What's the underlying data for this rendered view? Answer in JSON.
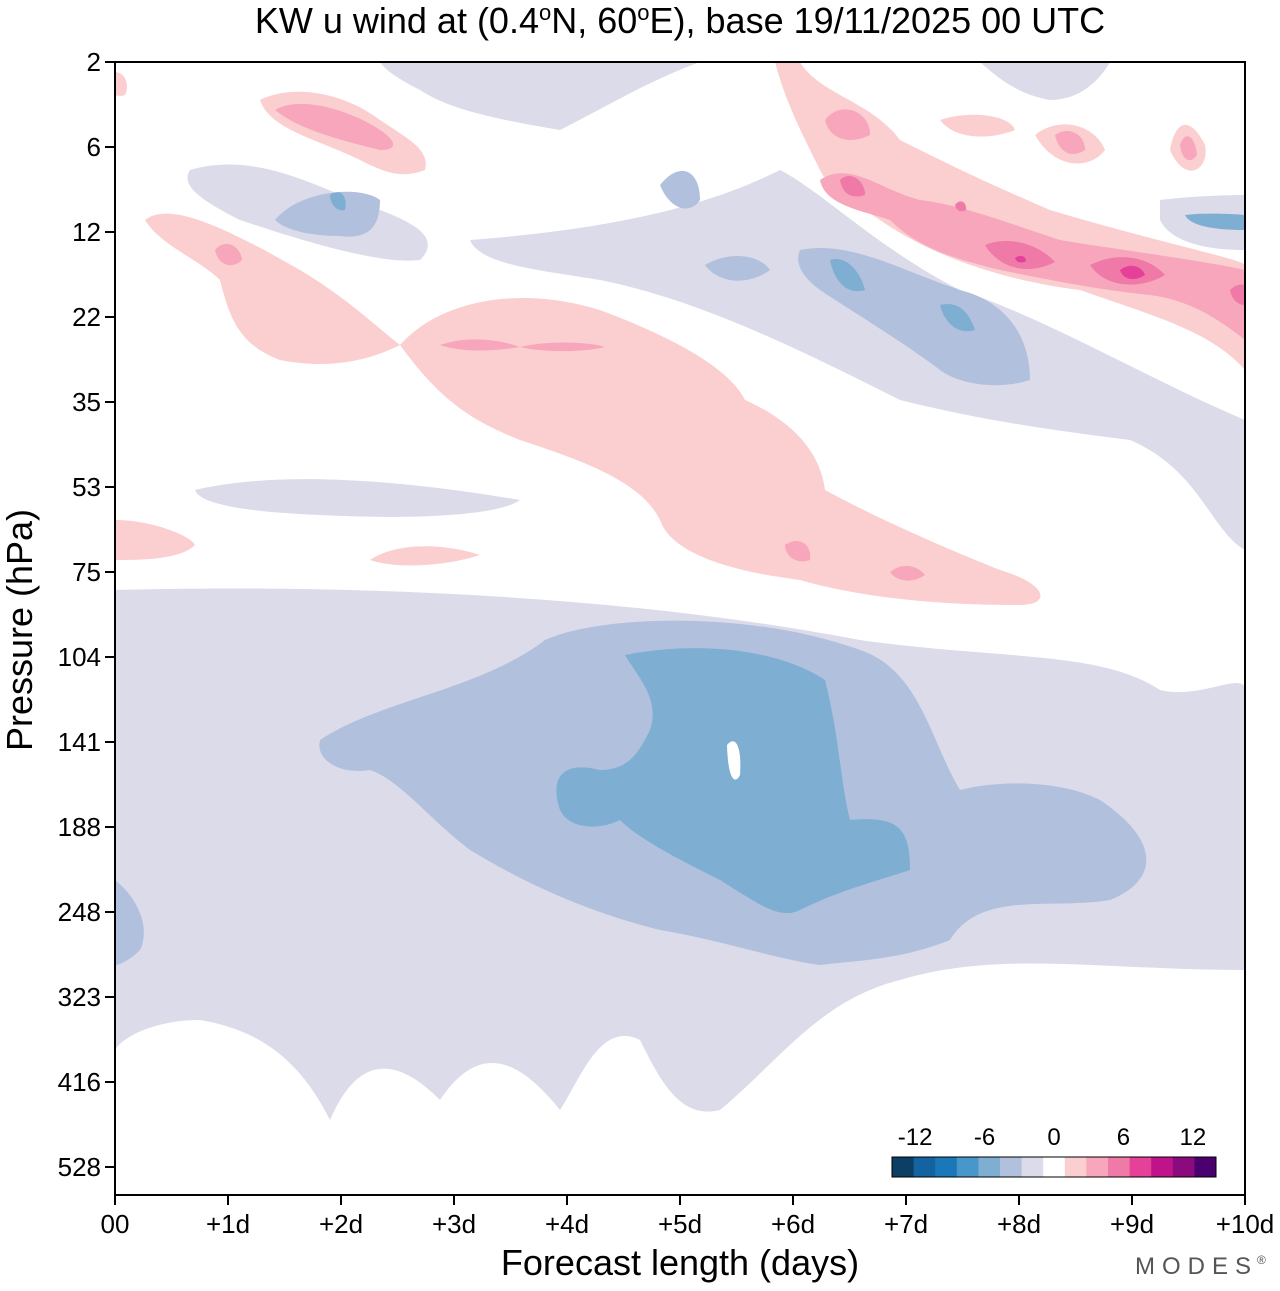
{
  "chart_data": {
    "type": "heatmap",
    "title": "KW u wind at (0.4°N, 60°E),  base 19/11/2025  00 UTC",
    "title_parts": {
      "prefix": "KW u wind at (0.4",
      "lat_unit": "N, 60",
      "lon_unit": "E),  base 19/11/2025  00 UTC",
      "degree": "o"
    },
    "xlabel": "Forecast length (days)",
    "ylabel": "Pressure (hPa)",
    "x_ticks": [
      "00",
      "+1d",
      "+2d",
      "+3d",
      "+4d",
      "+5d",
      "+6d",
      "+7d",
      "+8d",
      "+9d",
      "+10d"
    ],
    "x_range_days": [
      0,
      10
    ],
    "y_ticks": [
      "2",
      "6",
      "12",
      "22",
      "35",
      "53",
      "75",
      "104",
      "141",
      "188",
      "248",
      "323",
      "416",
      "528"
    ],
    "y_scale": "log-pressure",
    "colorbar": {
      "tick_labels": [
        "-12",
        "-6",
        "0",
        "6",
        "12"
      ],
      "levels_ms": [
        -14,
        -12,
        -10,
        -8,
        -6,
        -4,
        -2,
        0,
        2,
        4,
        6,
        8,
        10,
        12,
        14
      ],
      "colors": [
        "#0b3f64",
        "#1463a0",
        "#1b78b8",
        "#4897ca",
        "#7faed3",
        "#b1c0dd",
        "#dcdbea",
        "#ffffff",
        "#fbcfd0",
        "#f7a6bb",
        "#f07aa7",
        "#e64199",
        "#c0138b",
        "#8b0a7e",
        "#4b0070"
      ]
    },
    "approx_features": [
      {
        "sign": "easterly",
        "label": "upper-tropospheric easterly core",
        "days": [
          4.5,
          7
        ],
        "pressure_hPa": [
          120,
          260
        ],
        "min_ms": -9
      },
      {
        "sign": "westerly",
        "label": "lower-stratospheric westerly band",
        "days": [
          2.5,
          8
        ],
        "pressure_hPa": [
          20,
          80
        ],
        "max_ms": 4
      },
      {
        "sign": "westerly",
        "label": "upper-stratospheric westerly jet",
        "days": [
          6.5,
          10
        ],
        "pressure_hPa": [
          6,
          22
        ],
        "max_ms": 9
      },
      {
        "sign": "easterly",
        "label": "stratospheric easterly band",
        "days": [
          6,
          8
        ],
        "pressure_hPa": [
          12,
          40
        ],
        "min_ms": -6
      }
    ]
  },
  "branding": {
    "logo_text": "MODES",
    "mark": "®"
  }
}
